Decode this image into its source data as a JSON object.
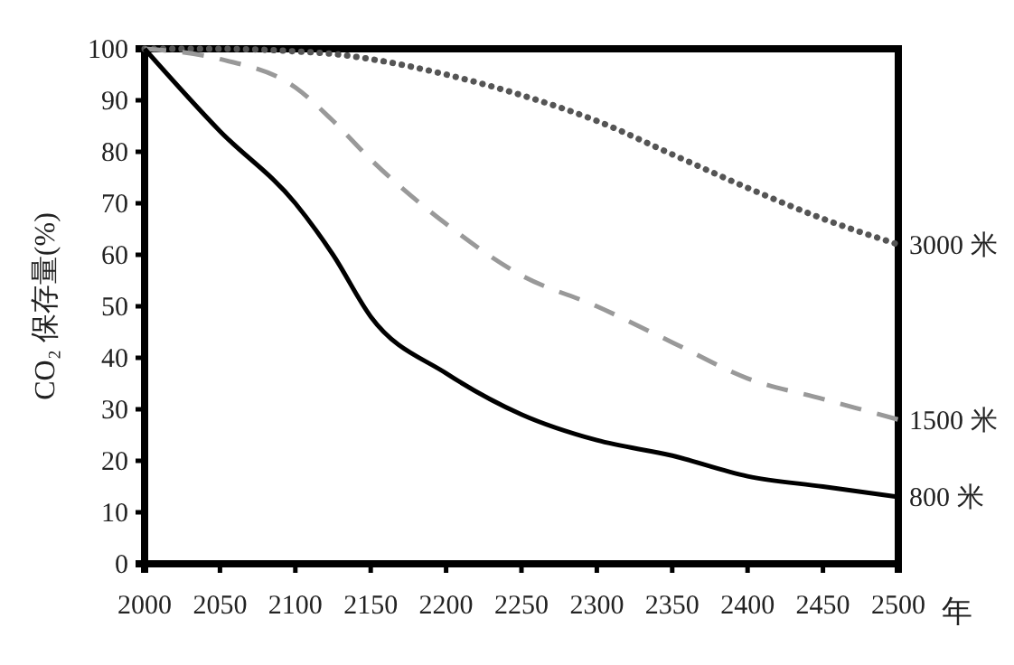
{
  "chart_data": {
    "type": "line",
    "ylabel": "CO₂ 保存量(%)",
    "xlabel": "年",
    "x": [
      2000,
      2050,
      2100,
      2125,
      2150,
      2200,
      2250,
      2300,
      2350,
      2400,
      2450,
      2500
    ],
    "series": [
      {
        "name": "3000 米",
        "color": "#555555",
        "line_style": "dotted",
        "values": [
          100,
          100,
          99.5,
          99,
          98,
          95,
          91,
          86,
          79.5,
          73,
          67,
          62
        ]
      },
      {
        "name": "1500 米",
        "color": "#999999",
        "line_style": "dashed",
        "values": [
          100,
          98,
          92.5,
          86,
          78.5,
          66,
          56,
          50,
          43,
          36,
          32,
          28
        ]
      },
      {
        "name": "800 米",
        "color": "#000000",
        "line_style": "solid",
        "values": [
          100,
          84,
          70,
          60,
          48,
          37,
          29,
          24,
          21,
          17,
          15,
          13
        ]
      }
    ],
    "xlim": [
      2000,
      2500
    ],
    "xticks": [
      2000,
      2050,
      2100,
      2150,
      2200,
      2250,
      2300,
      2350,
      2400,
      2450,
      2500
    ],
    "ylim": [
      0,
      100
    ],
    "yticks": [
      0,
      10,
      20,
      30,
      40,
      50,
      60,
      70,
      80,
      90,
      100
    ],
    "grid": false,
    "marker": "none"
  }
}
